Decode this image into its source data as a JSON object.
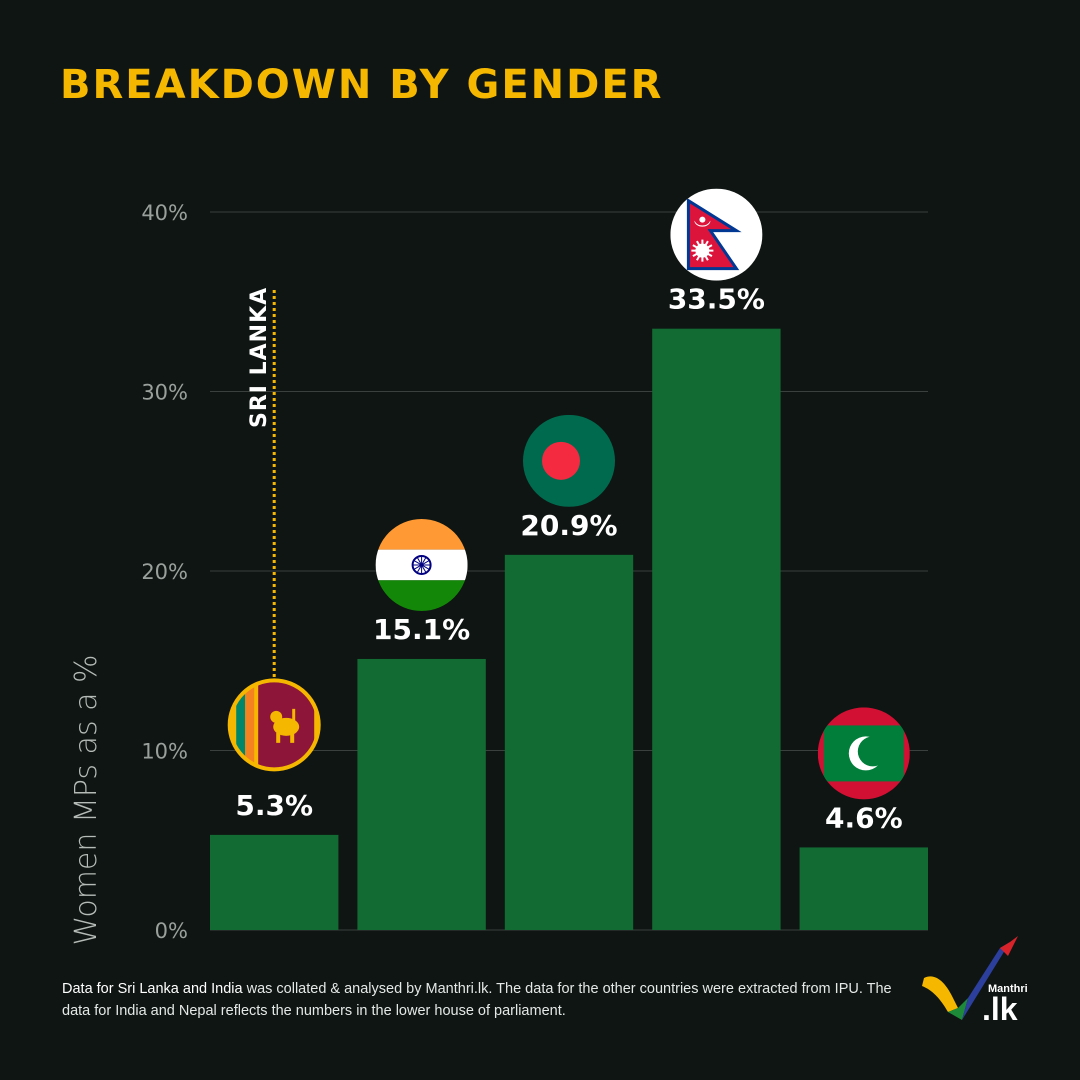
{
  "header": {
    "title": "BREAKDOWN BY GENDER"
  },
  "chart_data": {
    "type": "bar",
    "categories": [
      "Sri Lanka",
      "India",
      "Bangladesh",
      "Nepal",
      "Maldives"
    ],
    "values": [
      5.3,
      15.1,
      20.9,
      33.5,
      4.6
    ],
    "value_labels": [
      "5.3%",
      "15.1%",
      "20.9%",
      "33.5%",
      "4.6%"
    ],
    "flags": [
      "sri-lanka-flag-icon",
      "india-flag-icon",
      "bangladesh-flag-icon",
      "nepal-flag-icon",
      "maldives-flag-icon"
    ],
    "title": "BREAKDOWN BY GENDER",
    "xlabel": "",
    "ylabel": "Women MPs as a %",
    "ylim": [
      0,
      40
    ],
    "yticks": [
      0,
      10,
      20,
      30,
      40
    ],
    "ytick_labels": [
      "0%",
      "10%",
      "20%",
      "30%",
      "40%"
    ],
    "grid": true,
    "bar_color": "#136b34",
    "grid_color": "#3a403d",
    "annotation": {
      "text": "SRI LANKA",
      "category": "Sri Lanka",
      "color": "#f5b700"
    }
  },
  "footnote": {
    "bold_part": "Data for Sri Lanka and India",
    "rest": " was collated & analysed by Manthri.lk. The data for the other countries were extracted from IPU.  The data for India and Nepal reflects the numbers in the lower house of parliament."
  },
  "logo": {
    "small_text": "Manthri",
    "large_text": ".lk"
  },
  "colors": {
    "background": "#0e1512",
    "accent": "#f5b700"
  }
}
